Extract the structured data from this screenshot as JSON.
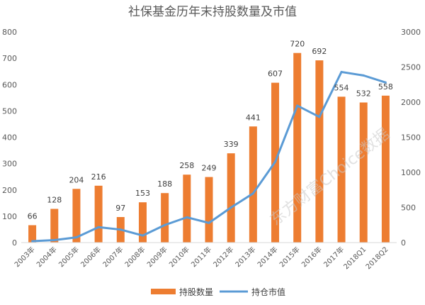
{
  "chart_data": {
    "type": "bar+line",
    "title": "社保基金历年末持股数量及市值",
    "categories": [
      "2003年",
      "2004年",
      "2005年",
      "2006年",
      "2007年",
      "2008年",
      "2009年",
      "2010年",
      "2011年",
      "2012年",
      "2013年",
      "2014年",
      "2015年",
      "2016年",
      "2017年",
      "2018Q1",
      "2018Q2"
    ],
    "series": [
      {
        "name": "持股数量",
        "kind": "bar",
        "axis": "left",
        "color": "#ED7D31",
        "values": [
          66,
          128,
          204,
          216,
          97,
          153,
          188,
          258,
          249,
          339,
          441,
          607,
          720,
          692,
          554,
          532,
          558
        ]
      },
      {
        "name": "持仓市值",
        "kind": "line",
        "axis": "right",
        "color": "#5B9BD5",
        "values": [
          20,
          35,
          75,
          220,
          185,
          100,
          250,
          360,
          280,
          500,
          700,
          1150,
          1950,
          1790,
          2430,
          2380,
          2280
        ]
      }
    ],
    "y_left": {
      "min": 0,
      "max": 800,
      "ticks": [
        0,
        100,
        200,
        300,
        400,
        500,
        600,
        700,
        800
      ]
    },
    "y_right": {
      "min": 0,
      "max": 3000,
      "ticks": [
        0,
        500,
        1000,
        1500,
        2000,
        2500,
        3000
      ]
    },
    "legend_position": "bottom",
    "grid": false,
    "watermark": "东方财富Choice数据"
  }
}
